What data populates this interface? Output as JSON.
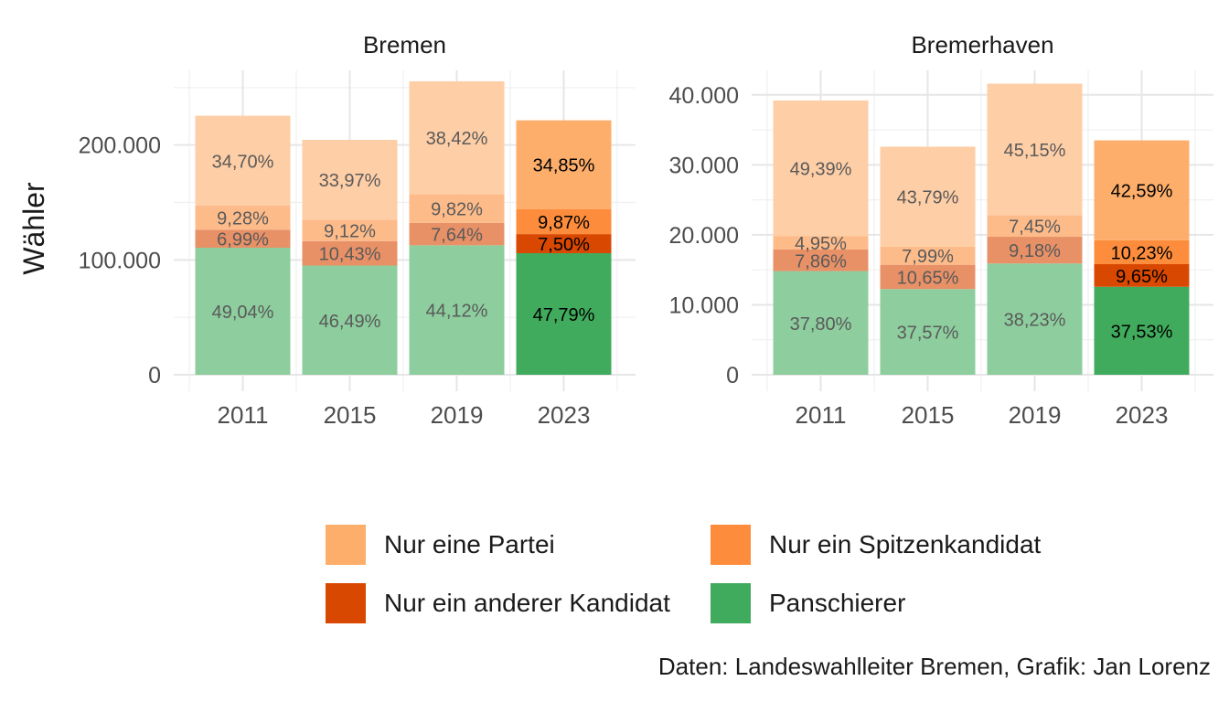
{
  "chart_data": {
    "type": "bar",
    "stacked": true,
    "ylabel": "Wähler",
    "categories": [
      "2011",
      "2015",
      "2019",
      "2023"
    ],
    "highlight_category": "2023",
    "colors": {
      "Panschierer": "#41ab5d",
      "Nur ein anderer Kandidat": "#d94801",
      "Nur ein Spitzenkandidat": "#fd8d3c",
      "Nur eine Partei": "#fdae6b"
    },
    "legend": [
      "Nur eine Partei",
      "Nur ein Spitzenkandidat",
      "Nur ein anderer Kandidat",
      "Panschierer"
    ],
    "legend_position": "bottom",
    "facets": [
      {
        "title": "Bremen",
        "ylim": [
          0,
          265000
        ],
        "yticks": [
          0,
          100000,
          200000
        ],
        "ytick_labels": [
          "0",
          "100.000",
          "200.000"
        ],
        "totals": [
          225500,
          204500,
          255500,
          221500
        ],
        "series": [
          {
            "name": "Panschierer",
            "values": [
              49.04,
              46.49,
              44.12,
              47.79
            ],
            "labels": [
              "49,04%",
              "46,49%",
              "44,12%",
              "47,79%"
            ]
          },
          {
            "name": "Nur ein anderer Kandidat",
            "values": [
              6.99,
              10.43,
              7.64,
              7.5
            ],
            "labels": [
              "6,99%",
              "10,43%",
              "7,64%",
              "7,50%"
            ]
          },
          {
            "name": "Nur ein Spitzenkandidat",
            "values": [
              9.28,
              9.12,
              9.82,
              9.87
            ],
            "labels": [
              "9,28%",
              "9,12%",
              "9,82%",
              "9,87%"
            ]
          },
          {
            "name": "Nur eine Partei",
            "values": [
              34.7,
              33.97,
              38.42,
              34.85
            ],
            "labels": [
              "34,70%",
              "33,97%",
              "38,42%",
              "34,85%"
            ]
          }
        ]
      },
      {
        "title": "Bremerhaven",
        "ylim": [
          0,
          43500
        ],
        "yticks": [
          0,
          10000,
          20000,
          30000,
          40000
        ],
        "ytick_labels": [
          "0",
          "10.000",
          "20.000",
          "30.000",
          "40.000"
        ],
        "totals": [
          39200,
          32600,
          41600,
          33500
        ],
        "series": [
          {
            "name": "Panschierer",
            "values": [
              37.8,
              37.57,
              38.23,
              37.53
            ],
            "labels": [
              "37,80%",
              "37,57%",
              "38,23%",
              "37,53%"
            ]
          },
          {
            "name": "Nur ein anderer Kandidat",
            "values": [
              7.86,
              10.65,
              9.18,
              9.65
            ],
            "labels": [
              "7,86%",
              "10,65%",
              "9,18%",
              "9,65%"
            ]
          },
          {
            "name": "Nur ein Spitzenkandidat",
            "values": [
              4.95,
              7.99,
              7.45,
              10.23
            ],
            "labels": [
              "4,95%",
              "7,99%",
              "7,45%",
              "10,23%"
            ]
          },
          {
            "name": "Nur eine Partei",
            "values": [
              49.39,
              43.79,
              45.15,
              42.59
            ],
            "labels": [
              "49,39%",
              "43,79%",
              "45,15%",
              "42,59%"
            ]
          }
        ]
      }
    ]
  },
  "legend_items": [
    {
      "label": "Nur eine Partei",
      "color": "#fdae6b"
    },
    {
      "label": "Nur ein Spitzenkandidat",
      "color": "#fd8d3c"
    },
    {
      "label": "Nur ein anderer Kandidat",
      "color": "#d94801"
    },
    {
      "label": "Panschierer",
      "color": "#41ab5d"
    }
  ],
  "caption": "Daten: Landeswahlleiter Bremen, Grafik: Jan Lorenz"
}
